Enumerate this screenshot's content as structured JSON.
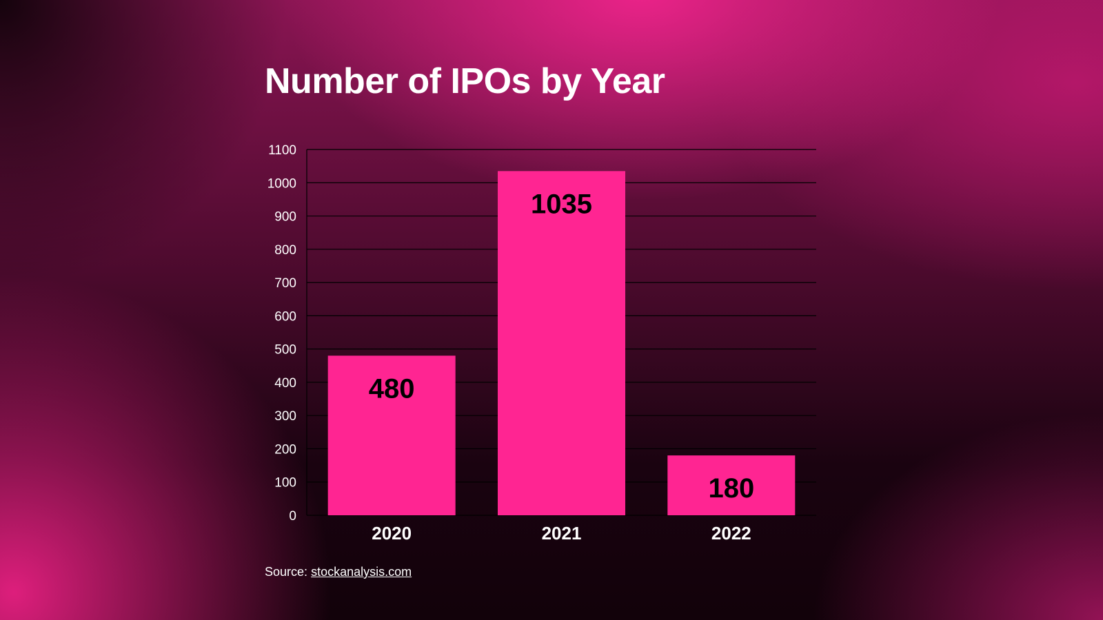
{
  "chart_data": {
    "type": "bar",
    "title": "Number of IPOs by Year",
    "categories": [
      "2020",
      "2021",
      "2022"
    ],
    "values": [
      480,
      1035,
      180
    ],
    "ylim": [
      0,
      1100
    ],
    "yticks": [
      "0",
      "100",
      "200",
      "300",
      "400",
      "500",
      "600",
      "700",
      "800",
      "900",
      "1000",
      "1100"
    ],
    "xlabel": "",
    "ylabel": "",
    "grid": true,
    "bar_color": "#ff2592"
  },
  "source": {
    "label": "Source:",
    "link_text": "stockanalysis.com"
  }
}
